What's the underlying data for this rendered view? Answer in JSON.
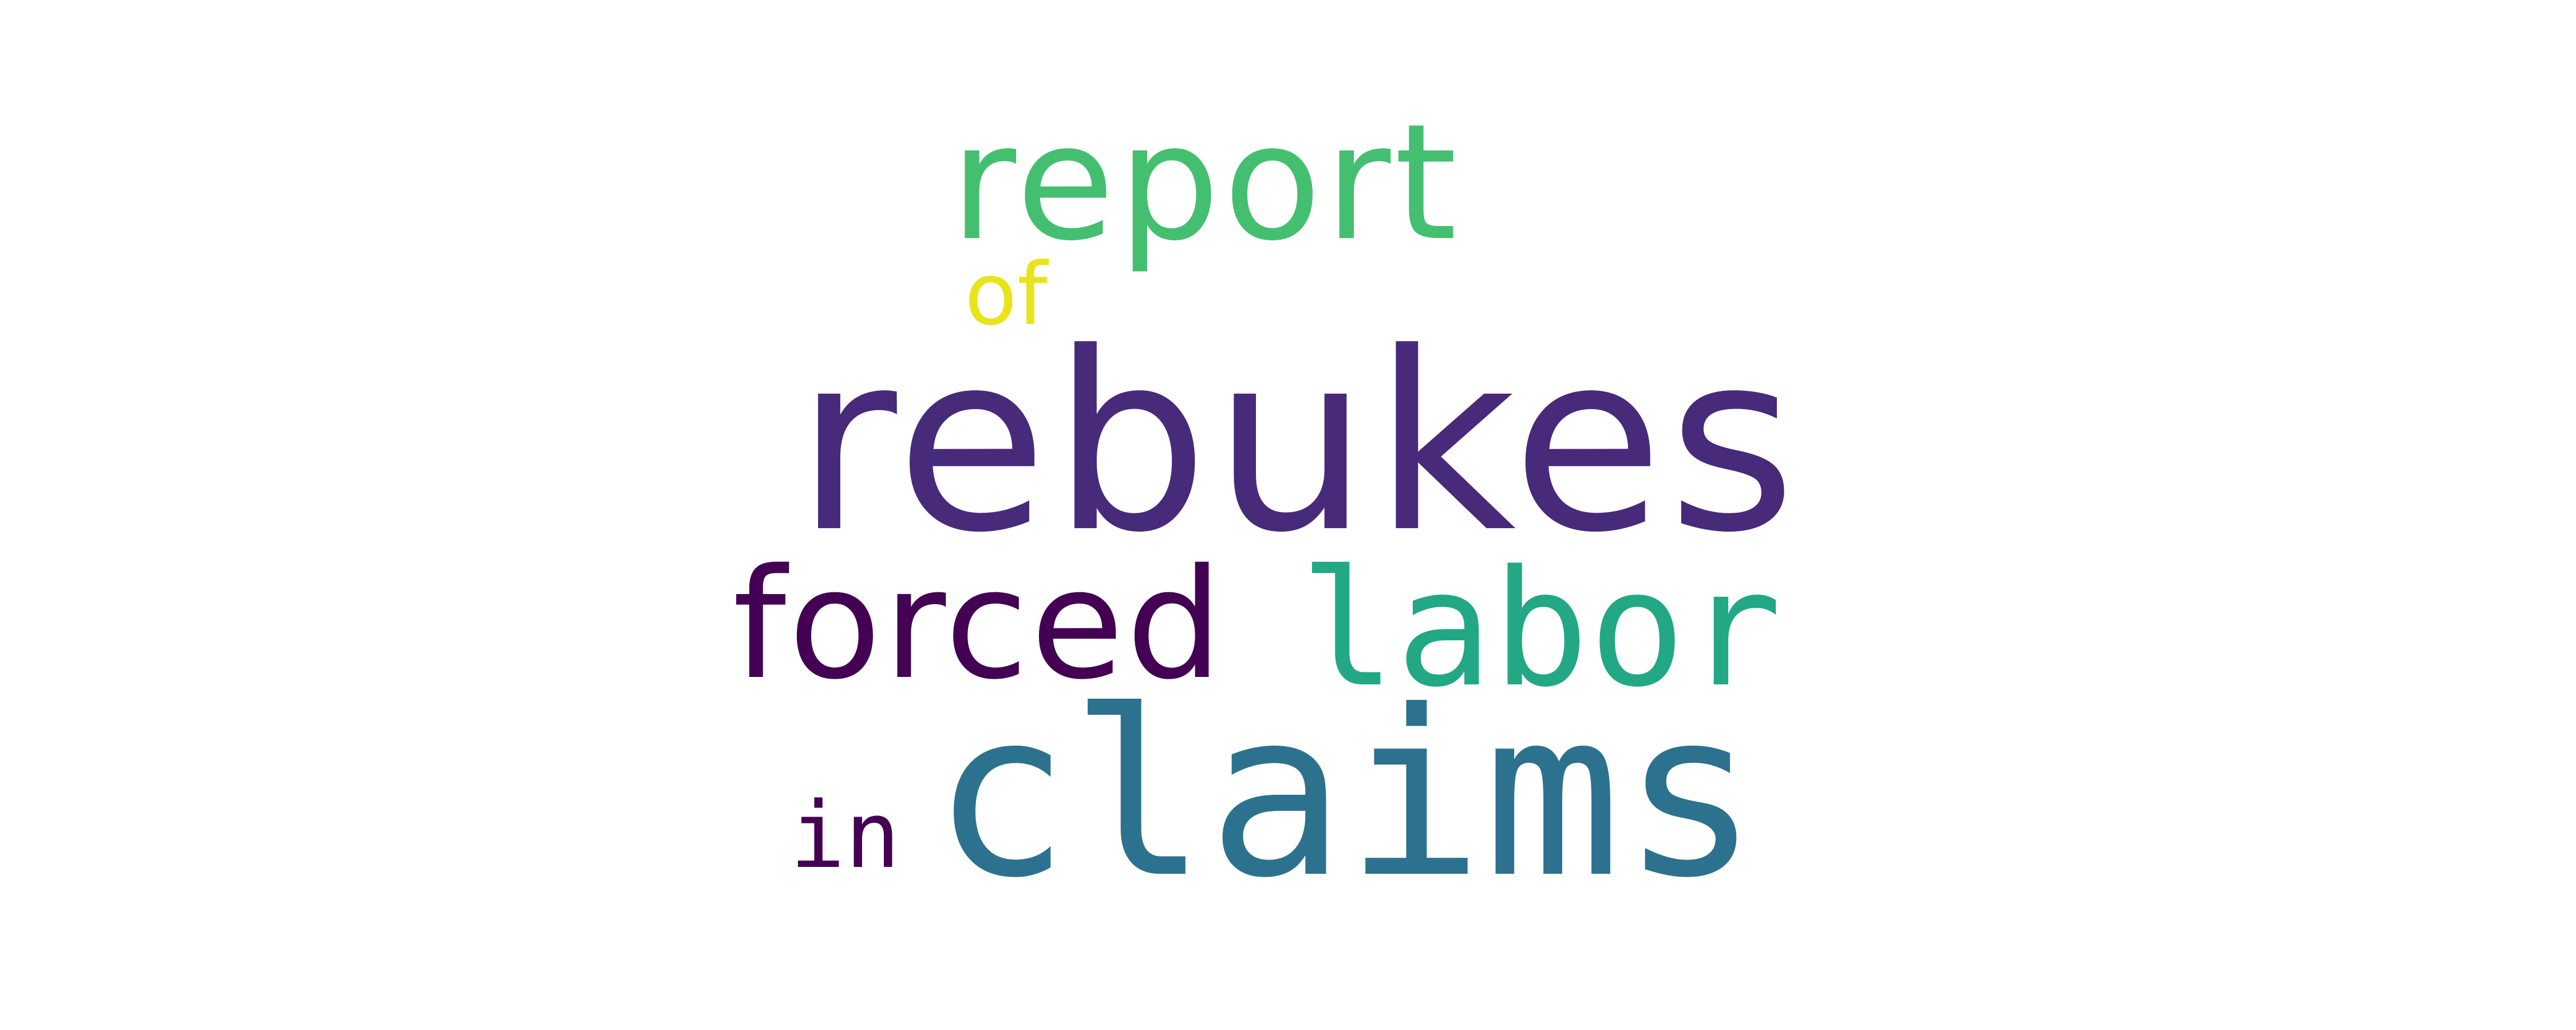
{
  "wordcloud": {
    "words": [
      {
        "id": "rebukes",
        "text": "rebukes",
        "color": "#472a7a"
      },
      {
        "id": "claims",
        "text": "claims",
        "color": "#2c728e"
      },
      {
        "id": "report",
        "text": "report",
        "color": "#44bf70"
      },
      {
        "id": "forced",
        "text": "forced",
        "color": "#440154"
      },
      {
        "id": "labor",
        "text": "labor",
        "color": "#22a884"
      },
      {
        "id": "of",
        "text": "of",
        "color": "#e8e419"
      },
      {
        "id": "in",
        "text": "in",
        "color": "#440154"
      }
    ]
  }
}
